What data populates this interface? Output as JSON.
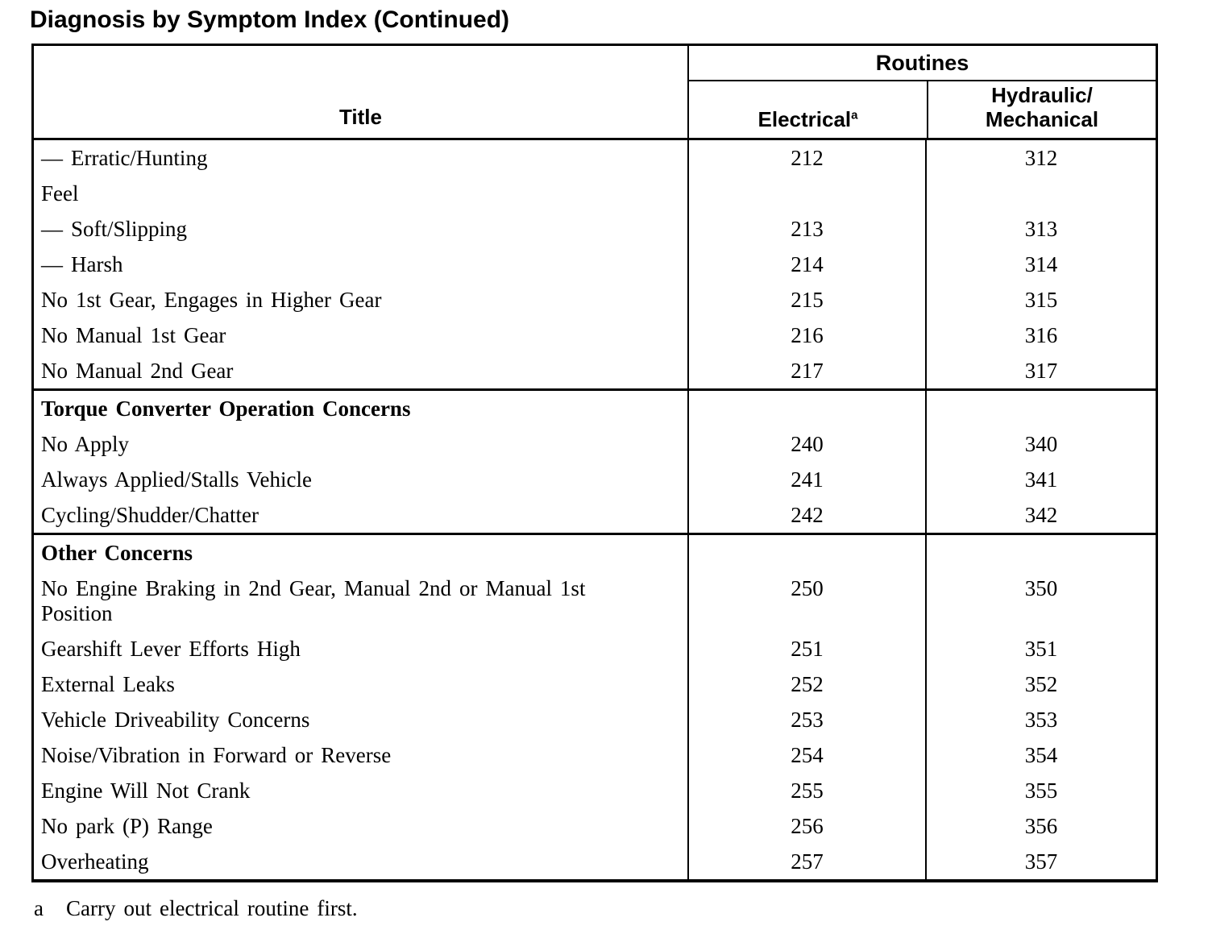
{
  "colors": {
    "ink": "#000000",
    "background": "#ffffff"
  },
  "page_title": "Diagnosis by Symptom Index (Continued)",
  "table": {
    "header": {
      "title_col": "Title",
      "routines": "Routines",
      "electrical": "Electrical",
      "electrical_sup": "a",
      "hydraulic_line1": "Hydraulic/",
      "hydraulic_line2": "Mechanical"
    },
    "sections": [
      {
        "rows": [
          {
            "title": "— Erratic/Hunting",
            "electrical": "212",
            "hydraulic": "312"
          },
          {
            "title": "Feel",
            "electrical": "",
            "hydraulic": ""
          },
          {
            "title": "— Soft/Slipping",
            "electrical": "213",
            "hydraulic": "313"
          },
          {
            "title": "— Harsh",
            "electrical": "214",
            "hydraulic": "314"
          },
          {
            "title": "No 1st Gear, Engages in Higher Gear",
            "electrical": "215",
            "hydraulic": "315"
          },
          {
            "title": "No Manual 1st Gear",
            "electrical": "216",
            "hydraulic": "316"
          },
          {
            "title": "No Manual 2nd Gear",
            "electrical": "217",
            "hydraulic": "317"
          }
        ]
      },
      {
        "header": "Torque Converter Operation Concerns",
        "rows": [
          {
            "title": "No Apply",
            "electrical": "240",
            "hydraulic": "340"
          },
          {
            "title": "Always Applied/Stalls Vehicle",
            "electrical": "241",
            "hydraulic": "341"
          },
          {
            "title": "Cycling/Shudder/Chatter",
            "electrical": "242",
            "hydraulic": "342"
          }
        ]
      },
      {
        "header": "Other Concerns",
        "rows": [
          {
            "title": "No Engine Braking in 2nd Gear, Manual 2nd or Manual 1st Position",
            "electrical": "250",
            "hydraulic": "350"
          },
          {
            "title": "Gearshift Lever Efforts High",
            "electrical": "251",
            "hydraulic": "351"
          },
          {
            "title": "External Leaks",
            "electrical": "252",
            "hydraulic": "352"
          },
          {
            "title": "Vehicle Driveability Concerns",
            "electrical": "253",
            "hydraulic": "353"
          },
          {
            "title": "Noise/Vibration in Forward or Reverse",
            "electrical": "254",
            "hydraulic": "354"
          },
          {
            "title": "Engine Will Not Crank",
            "electrical": "255",
            "hydraulic": "355"
          },
          {
            "title": "No park (P) Range",
            "electrical": "256",
            "hydraulic": "356"
          },
          {
            "title": "Overheating",
            "electrical": "257",
            "hydraulic": "357"
          }
        ]
      }
    ]
  },
  "footnote": {
    "marker": "a",
    "text": "Carry out electrical routine first."
  }
}
